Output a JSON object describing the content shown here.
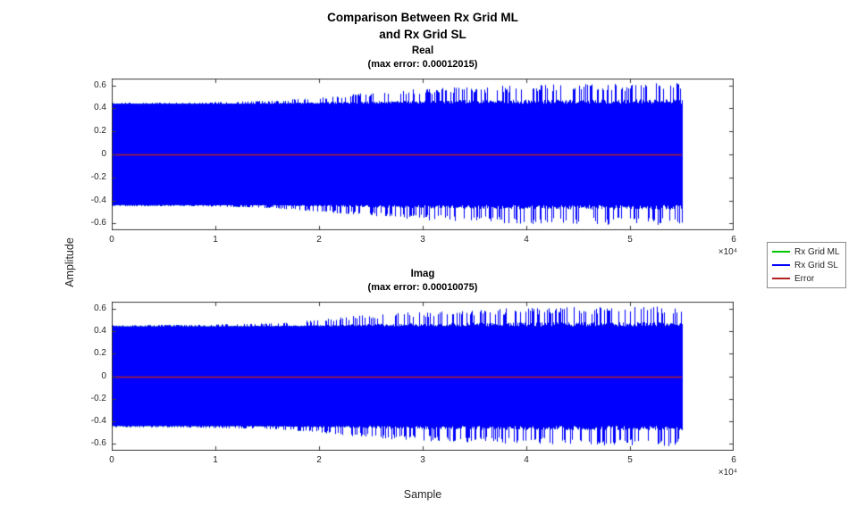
{
  "figure": {
    "title_line1": "Comparison Between Rx Grid ML",
    "title_line2": "and Rx Grid SL",
    "xlabel": "Sample",
    "ylabel": "Amplitude",
    "background": "#ffffff"
  },
  "legend": {
    "position": "right-outside-middle",
    "entries": [
      {
        "label": "Rx Grid ML",
        "color": "#00c800"
      },
      {
        "label": "Rx Grid SL",
        "color": "#0000ff"
      },
      {
        "label": "Error",
        "color": "#b22222"
      }
    ]
  },
  "chart_data": [
    {
      "type": "line",
      "title": "Real",
      "subtitle": "(max error: 0.00012015)",
      "max_error": 0.00012015,
      "xlim": [
        0,
        60000
      ],
      "ylim": [
        -0.66,
        0.66
      ],
      "xticks": [
        0,
        10000,
        20000,
        30000,
        40000,
        50000,
        60000
      ],
      "xtick_labels": [
        "0",
        "1",
        "2",
        "3",
        "4",
        "5",
        "6"
      ],
      "x_exponent_label": "×10⁴",
      "yticks": [
        -0.6,
        -0.4,
        -0.2,
        0,
        0.2,
        0.4,
        0.6
      ],
      "ytick_labels": [
        "-0.6",
        "-0.4",
        "-0.2",
        "0",
        "0.2",
        "0.4",
        "0.6"
      ],
      "grid": false,
      "series": [
        {
          "name": "Rx Grid ML",
          "color": "#00c800",
          "signal": {
            "kind": "dense-oscillation",
            "x_start": 0,
            "x_end": 55000,
            "envelope_x": [
              0,
              8000,
              16000,
              20000,
              24000,
              28000,
              32000,
              38000,
              44000,
              50000,
              55000
            ],
            "envelope_y": [
              0.45,
              0.45,
              0.47,
              0.5,
              0.53,
              0.56,
              0.58,
              0.6,
              0.61,
              0.615,
              0.62
            ]
          }
        },
        {
          "name": "Rx Grid SL",
          "color": "#0000ff",
          "signal": {
            "kind": "dense-oscillation",
            "x_start": 0,
            "x_end": 55000,
            "envelope_x": [
              0,
              8000,
              16000,
              20000,
              24000,
              28000,
              32000,
              38000,
              44000,
              50000,
              55000
            ],
            "envelope_y": [
              0.45,
              0.45,
              0.47,
              0.5,
              0.53,
              0.56,
              0.58,
              0.6,
              0.61,
              0.615,
              0.62
            ]
          }
        },
        {
          "name": "Error",
          "color": "#b22222",
          "signal": {
            "kind": "constant",
            "value": 0,
            "x_start": 0,
            "x_end": 55000
          }
        }
      ]
    },
    {
      "type": "line",
      "title": "Imag",
      "subtitle": "(max error: 0.00010075)",
      "max_error": 0.00010075,
      "xlim": [
        0,
        60000
      ],
      "ylim": [
        -0.66,
        0.66
      ],
      "xticks": [
        0,
        10000,
        20000,
        30000,
        40000,
        50000,
        60000
      ],
      "xtick_labels": [
        "0",
        "1",
        "2",
        "3",
        "4",
        "5",
        "6"
      ],
      "x_exponent_label": "×10⁴",
      "yticks": [
        -0.6,
        -0.4,
        -0.2,
        0,
        0.2,
        0.4,
        0.6
      ],
      "ytick_labels": [
        "-0.6",
        "-0.4",
        "-0.2",
        "0",
        "0.2",
        "0.4",
        "0.6"
      ],
      "grid": false,
      "series": [
        {
          "name": "Rx Grid ML",
          "color": "#00c800",
          "signal": {
            "kind": "dense-oscillation",
            "x_start": 0,
            "x_end": 55000,
            "envelope_x": [
              0,
              8000,
              16000,
              20000,
              24000,
              28000,
              32000,
              38000,
              44000,
              50000,
              55000
            ],
            "envelope_y": [
              0.45,
              0.455,
              0.47,
              0.5,
              0.54,
              0.565,
              0.58,
              0.6,
              0.61,
              0.615,
              0.62
            ]
          }
        },
        {
          "name": "Rx Grid SL",
          "color": "#0000ff",
          "signal": {
            "kind": "dense-oscillation",
            "x_start": 0,
            "x_end": 55000,
            "envelope_x": [
              0,
              8000,
              16000,
              20000,
              24000,
              28000,
              32000,
              38000,
              44000,
              50000,
              55000
            ],
            "envelope_y": [
              0.45,
              0.455,
              0.47,
              0.5,
              0.54,
              0.565,
              0.58,
              0.6,
              0.61,
              0.615,
              0.62
            ]
          }
        },
        {
          "name": "Error",
          "color": "#b22222",
          "signal": {
            "kind": "constant",
            "value": 0,
            "x_start": 0,
            "x_end": 55000
          }
        }
      ]
    }
  ]
}
